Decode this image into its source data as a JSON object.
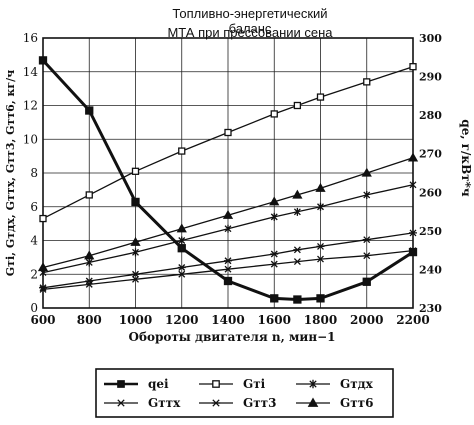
{
  "chart_data": {
    "type": "line",
    "title": "Топливно-энергетический баланс",
    "subtitle": "МТА при прессовании сена",
    "xlabel": "Обороты двигателя n, мин−1",
    "ylabel_left": "Gтi, Gтдх, Gттх, Gтт3, Gтт6, кг/ч",
    "ylabel_right": "qе, г/кВт*ч",
    "x": [
      600,
      800,
      1000,
      1200,
      1400,
      1600,
      1700,
      1800,
      2000,
      2200
    ],
    "x_ticks": [
      600,
      800,
      1000,
      1200,
      1400,
      1600,
      1800,
      2000,
      2200
    ],
    "x_tick_labels": [
      "600",
      "800",
      "1000",
      "1200",
      "1400",
      "1600",
      "1800",
      "2000",
      "2200"
    ],
    "xlim": [
      600,
      2200
    ],
    "ylim_left": [
      0,
      16
    ],
    "y_ticks_left": [
      "0",
      "2",
      "4",
      "6",
      "8",
      "10",
      "12",
      "14",
      "16"
    ],
    "ylim_right": [
      230,
      300
    ],
    "y_ticks_right": [
      "230",
      "240",
      "250",
      "260",
      "270",
      "280",
      "290",
      "300"
    ],
    "grid": true,
    "legend_placement": "below",
    "series": [
      {
        "name": "qei",
        "marker": "square-filled",
        "axis": "right",
        "thick": true,
        "values": [
          294.2,
          281.2,
          257.5,
          245.5,
          237.0,
          232.5,
          232.2,
          232.5,
          236.8,
          244.5
        ]
      },
      {
        "name": "Gтi",
        "marker": "square-open",
        "axis": "left",
        "values": [
          5.3,
          6.7,
          8.1,
          9.3,
          10.4,
          11.5,
          12.0,
          12.5,
          13.4,
          14.3
        ]
      },
      {
        "name": "Gтдх",
        "marker": "asterisk",
        "axis": "left",
        "values": [
          2.1,
          2.7,
          3.3,
          4.0,
          4.7,
          5.4,
          5.7,
          6.0,
          6.7,
          7.3
        ]
      },
      {
        "name": "Gттх",
        "marker": "x",
        "axis": "left",
        "values": [
          1.1,
          1.4,
          1.7,
          2.0,
          2.3,
          2.6,
          2.75,
          2.9,
          3.1,
          3.4
        ]
      },
      {
        "name": "Gтт3",
        "marker": "star",
        "axis": "left",
        "values": [
          1.2,
          1.6,
          2.0,
          2.4,
          2.8,
          3.2,
          3.45,
          3.65,
          4.05,
          4.45
        ]
      },
      {
        "name": "Gтт6",
        "marker": "triangle",
        "axis": "left",
        "values": [
          2.4,
          3.1,
          3.9,
          4.7,
          5.5,
          6.3,
          6.7,
          7.1,
          8.0,
          8.9
        ]
      }
    ]
  }
}
